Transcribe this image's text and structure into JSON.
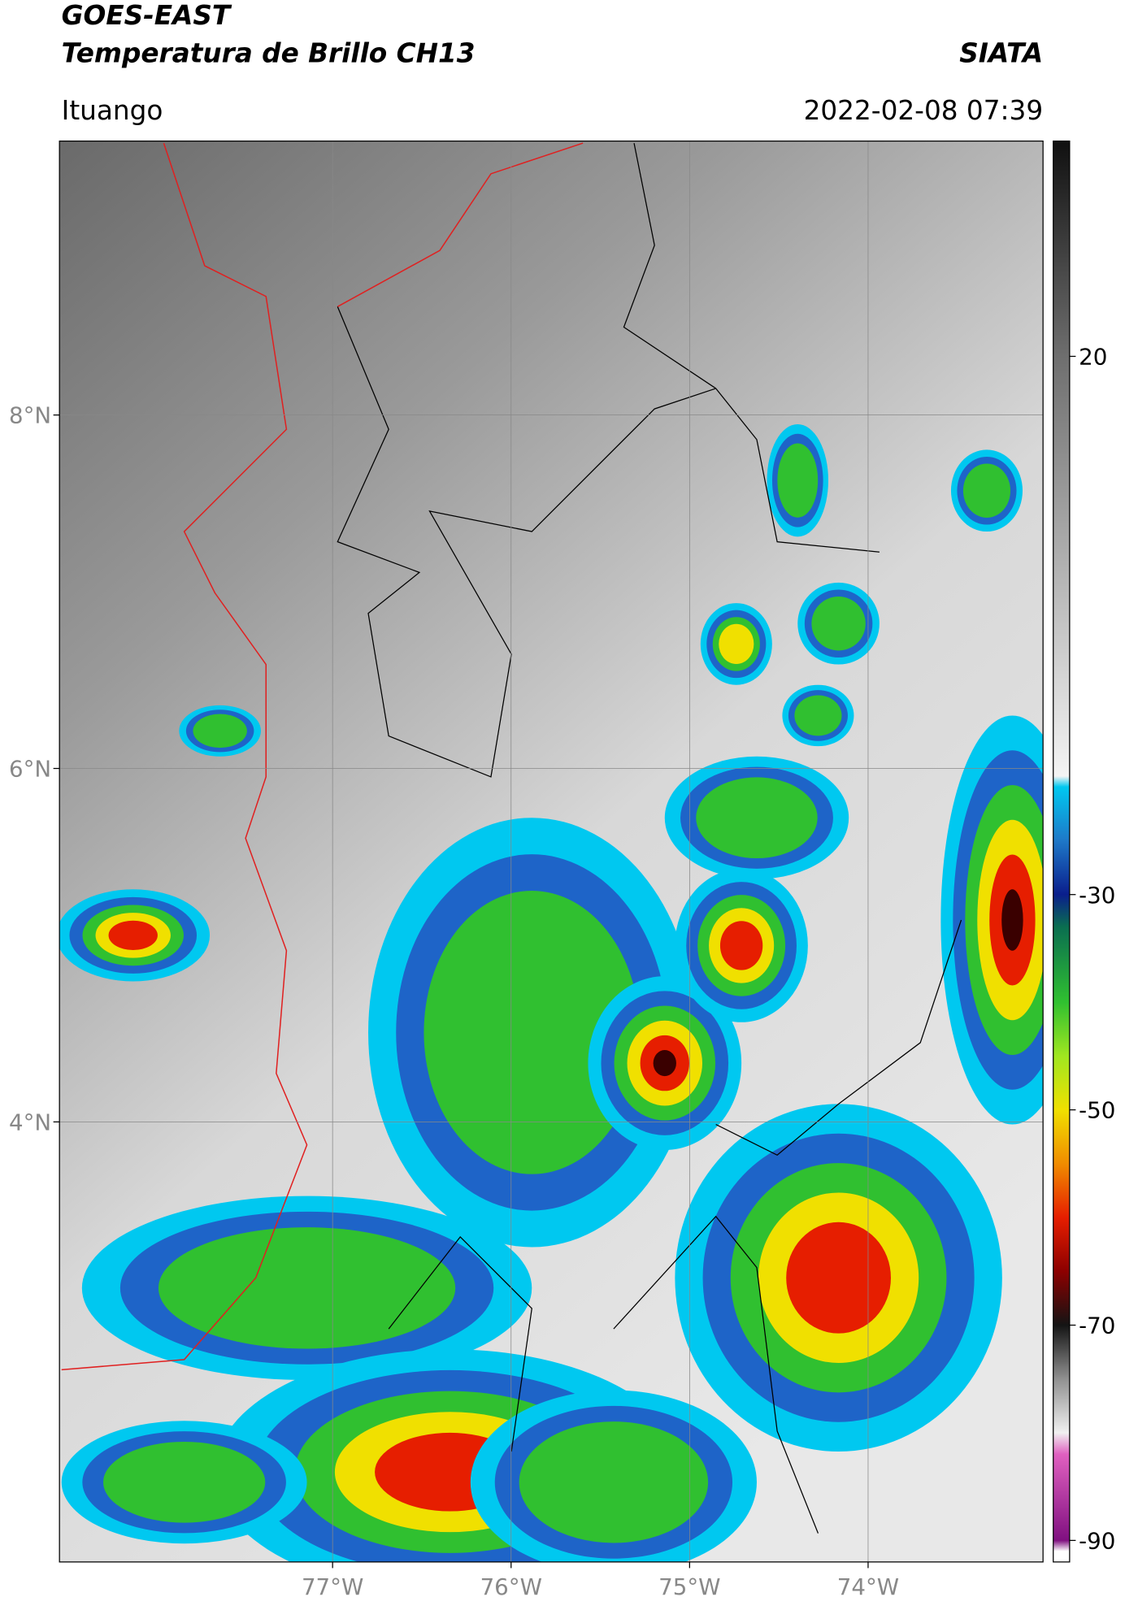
{
  "header": {
    "title": "GOES-EAST",
    "subtitle": "Temperatura de Brillo CH13",
    "source": "SIATA",
    "location": "Ituango",
    "datetime": "2022-02-08 07:39"
  },
  "map": {
    "xlim": [
      -78.53,
      -73.02
    ],
    "ylim": [
      1.51,
      9.55
    ],
    "xticks": [
      {
        "value": -77,
        "label": "77°W"
      },
      {
        "value": -76,
        "label": "76°W"
      },
      {
        "value": -75,
        "label": "75°W"
      },
      {
        "value": -74,
        "label": "74°W"
      }
    ],
    "yticks": [
      {
        "value": 8,
        "label": "8°N"
      },
      {
        "value": 6,
        "label": "6°N"
      },
      {
        "value": 4,
        "label": "4°N"
      }
    ],
    "grid": true,
    "colorbar": {
      "lim": [
        -92,
        40
      ],
      "ticks": [
        20,
        -30,
        -50,
        -70,
        -90
      ],
      "stops": [
        [
          40,
          "#101010"
        ],
        [
          20,
          "#6e6e6e"
        ],
        [
          -19,
          "#f4f4f4"
        ],
        [
          -20,
          "#00c8f0"
        ],
        [
          -25,
          "#1e78c8"
        ],
        [
          -30,
          "#0a1e8c"
        ],
        [
          -33,
          "#0a6e50"
        ],
        [
          -40,
          "#30c030"
        ],
        [
          -45,
          "#a0e620"
        ],
        [
          -50,
          "#f0e000"
        ],
        [
          -55,
          "#f08c00"
        ],
        [
          -60,
          "#e61e00"
        ],
        [
          -65,
          "#8c0000"
        ],
        [
          -70,
          "#141414"
        ],
        [
          -75,
          "#909090"
        ],
        [
          -80,
          "#f0f0f0"
        ],
        [
          -82,
          "#e060c0"
        ],
        [
          -90,
          "#801080"
        ],
        [
          -91,
          "#ffffff"
        ]
      ]
    }
  }
}
